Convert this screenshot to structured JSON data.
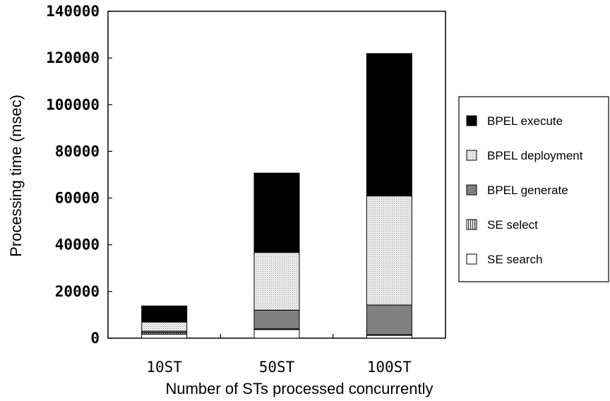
{
  "chart_data": {
    "type": "bar",
    "stacked": true,
    "categories": [
      "10ST",
      "50ST",
      "100ST"
    ],
    "series": [
      {
        "name": "SE search",
        "values": [
          1700,
          3700,
          1200
        ],
        "color": "#ffffff",
        "pattern": "none"
      },
      {
        "name": "SE select",
        "values": [
          600,
          300,
          300
        ],
        "color": "#bbbbbb",
        "pattern": "vertical-lines"
      },
      {
        "name": "BPEL generate",
        "values": [
          700,
          8000,
          12700
        ],
        "color": "#808080",
        "pattern": "solid"
      },
      {
        "name": "BPEL deployment",
        "values": [
          3900,
          24700,
          46700
        ],
        "color": "#eeeeee",
        "pattern": "dots"
      },
      {
        "name": "BPEL execute",
        "values": [
          6900,
          34000,
          61000
        ],
        "color": "#000000",
        "pattern": "solid"
      }
    ],
    "xlabel": "Number of STs processed concurrently",
    "ylabel": "Processing time (msec)",
    "ylim": [
      0,
      140000
    ],
    "yticks": [
      "0",
      "20000",
      "40000",
      "60000",
      "80000",
      "100000",
      "120000",
      "140000"
    ],
    "legend_order": [
      "BPEL execute",
      "BPEL deployment",
      "BPEL generate",
      "SE select",
      "SE search"
    ],
    "legend_position": "right",
    "grid": false
  }
}
